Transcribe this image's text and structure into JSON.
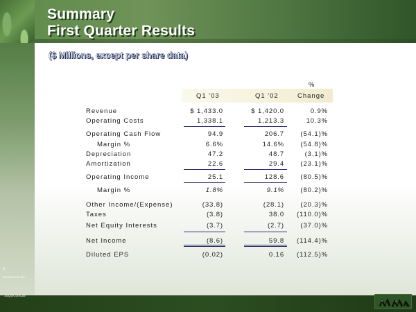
{
  "slide": {
    "title_line1": "Summary",
    "title_line2": "First Quarter Results",
    "subtitle": "($ Millions, except per share data)",
    "slide_number": "6",
    "timestamp": "5/6/2003 3:15 PM",
    "footer_code": "1stQtrlConfCall"
  },
  "colors": {
    "accent_green": "#3e6b35",
    "rule_navy": "#2b2f6b",
    "header_band": "#f1ecd0"
  },
  "icons": {
    "logo": "company-logo-icon"
  },
  "table": {
    "headers": {
      "col1": "Q1 '03",
      "col2": "Q1 '02",
      "col3_line1": "%",
      "col3_line2": "Change"
    },
    "rows": [
      {
        "label": "Revenue",
        "q1_03": "$  1,433.0",
        "q1_02": "$  1,420.0",
        "change": "0.9%"
      },
      {
        "label": "Operating Costs",
        "q1_03": "1,338.1",
        "q1_02": "1,213.3",
        "change": "10.3%"
      },
      {
        "label": "Operating Cash Flow",
        "q1_03": "94.9",
        "q1_02": "206.7",
        "change": "(54.1)%"
      },
      {
        "label": "Margin %",
        "q1_03": "6.6%",
        "q1_02": "14.6%",
        "change": "(54.8)%"
      },
      {
        "label": "Depreciation",
        "q1_03": "47.2",
        "q1_02": "48.7",
        "change": "(3.1)%"
      },
      {
        "label": "Amortization",
        "q1_03": "22.6",
        "q1_02": "29.4",
        "change": "(23.1)%"
      },
      {
        "label": "Operating Income",
        "q1_03": "25.1",
        "q1_02": "128.6",
        "change": "(80.5)%"
      },
      {
        "label": "Margin %",
        "q1_03": "1.8%",
        "q1_02": "9.1%",
        "change": "(80.2)%"
      },
      {
        "label": "Other Income/(Expense)",
        "q1_03": "(33.8)",
        "q1_02": "(28.1)",
        "change": "(20.3)%"
      },
      {
        "label": "Taxes",
        "q1_03": "(3.8)",
        "q1_02": "38.0",
        "change": "(110.0)%"
      },
      {
        "label": "Net Equity Interests",
        "q1_03": "(3.7)",
        "q1_02": "(2.7)",
        "change": "(37.0)%"
      },
      {
        "label": "Net Income",
        "q1_03": "(8.6)",
        "q1_02": "59.8",
        "change": "(114.4)%"
      },
      {
        "label": "Diluted EPS",
        "q1_03": "(0.02)",
        "q1_02": "0.16",
        "change": "(112.5)%"
      }
    ]
  }
}
